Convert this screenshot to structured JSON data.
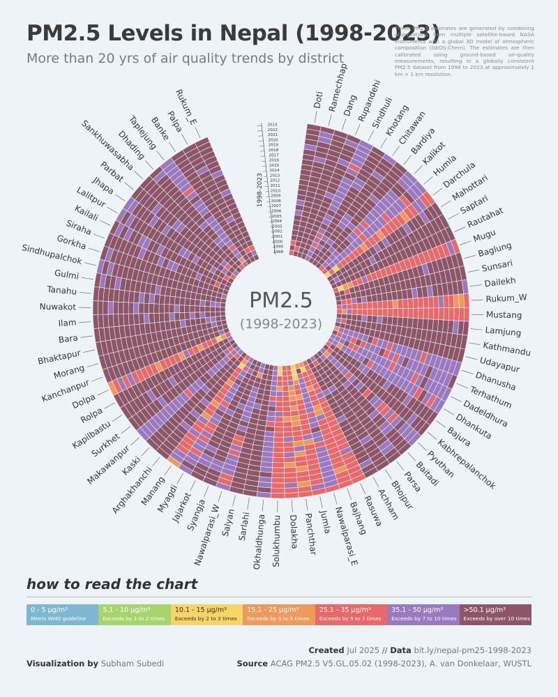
{
  "header": {
    "title": "PM2.5 Levels in Nepal (1998-2023)",
    "subtitle": "More than 20 yrs of air quality trends by district",
    "note": "These PM2.5 estimates are generated by combining observations from multiple satellite-based NASA instruments with a global 3D model of atmospheric composition (GEOS-Chem). The estimates are then calibrated using ground-based air-quality measurements, resulting in a globally consistent PM2.5 dataset from 1998 to 2023 at approximately 1 km × 1 km resolution."
  },
  "center": {
    "label": "PM2.5",
    "years": "(1998-2023)"
  },
  "chart_data": {
    "type": "heatmap",
    "layout": "radial",
    "year_axis_label": "1998-2023",
    "years": [
      1998,
      1999,
      2000,
      2001,
      2002,
      2003,
      2004,
      2005,
      2006,
      2007,
      2008,
      2009,
      2010,
      2011,
      2012,
      2013,
      2014,
      2015,
      2016,
      2017,
      2018,
      2019,
      2020,
      2021,
      2022,
      2023
    ],
    "districts": [
      "Doti",
      "Ramechhap",
      "Dang",
      "Rupandehi",
      "Sindhuli",
      "Khotang",
      "Chitawan",
      "Bardiya",
      "Kalikot",
      "Humla",
      "Darchula",
      "Mahottari",
      "Saptari",
      "Rautahat",
      "Mugu",
      "Baglung",
      "Sunsari",
      "Dailekh",
      "Rukum_W",
      "Mustang",
      "Lamjung",
      "Kathmandu",
      "Udayapur",
      "Dhanusha",
      "Terhathum",
      "Dadeldhura",
      "Dhankuta",
      "Bajura",
      "Kabhrepalanchok",
      "Pyuthan",
      "Baitadi",
      "Parsa",
      "Bhojpur",
      "Achham",
      "Rasuwa",
      "Bajhang",
      "Nawalparasi_E",
      "Jumla",
      "Panchthar",
      "Dolakha",
      "Solukhumbu",
      "Okhaldhunga",
      "Sarlahi",
      "Salyan",
      "Nawalparasi_W",
      "Syangja",
      "Jajarkot",
      "Myagdi",
      "Manang",
      "Arghakhanchi",
      "Kaski",
      "Makawanpur",
      "Surkhet",
      "Kapilbastu",
      "Rolpa",
      "Dolpa",
      "Kanchanpur",
      "Morang",
      "Bhaktapur",
      "Bara",
      "Ilam",
      "Nuwakot",
      "Tanahu",
      "Gulmi",
      "Sindhupalchok",
      "Gorkha",
      "Siraha",
      "Kailali",
      "Lalitpur",
      "Jhapa",
      "Parbat",
      "Sankhuwasabha",
      "Dhading",
      "Taplejung",
      "Banke",
      "Palpa",
      "Rukum_E"
    ],
    "district_category_levels": [
      6,
      6,
      7,
      6,
      5,
      6,
      6,
      6,
      5,
      5,
      4,
      6,
      6,
      7,
      4,
      6,
      7,
      6,
      4,
      4,
      6,
      6,
      7,
      5,
      5,
      5,
      5,
      6,
      6,
      5,
      6,
      6,
      6,
      6,
      4,
      4,
      5,
      4,
      4,
      4,
      4,
      5,
      7,
      6,
      5,
      6,
      6,
      5,
      4,
      6,
      6,
      5,
      6,
      6,
      7,
      4,
      7,
      7,
      7,
      6,
      6,
      6,
      6,
      6,
      6,
      6,
      6,
      6,
      6,
      6,
      6,
      6,
      6,
      5,
      7,
      6,
      6
    ],
    "categories": [
      {
        "range": "0 - 5 µg/m³",
        "description": "Meets WHO guideline",
        "color": "#7fb7d2"
      },
      {
        "range": "5.1 - 10 µg/m³",
        "description": "Exceeds by 1 to 2 times",
        "color": "#a8d46c"
      },
      {
        "range": "10.1 - 15 µg/m³",
        "description": "Exceeds by 2 to 3 times",
        "color": "#f5d567"
      },
      {
        "range": "15.1 - 25 µg/m³",
        "description": "Exceeds by 3 to 5 times",
        "color": "#ef9a5c"
      },
      {
        "range": "25.1 - 35 µg/m³",
        "description": "Exceeds by 5 to 7 times",
        "color": "#e8696a"
      },
      {
        "range": "35.1 - 50 µg/m³",
        "description": "Exceeds by 7 to 10 times",
        "color": "#9b79bf"
      },
      {
        "range": ">50.1 µg/m³",
        "description": "Exceeds by over 10 times",
        "color": "#8c5668"
      }
    ]
  },
  "legend_title": "how to read the chart",
  "footer": {
    "created_label": "Created",
    "created_value": "Jul 2025",
    "data_label": "Data",
    "data_value": "bit.ly/nepal-pm25-1998-2023",
    "source_label": "Source",
    "source_value": "ACAG PM2.5 V5.GL.05.02 (1998-2023), A. van Donkelaar, WUSTL",
    "byline_label": "Visualization by",
    "byline_value": "Subham Subedi"
  }
}
